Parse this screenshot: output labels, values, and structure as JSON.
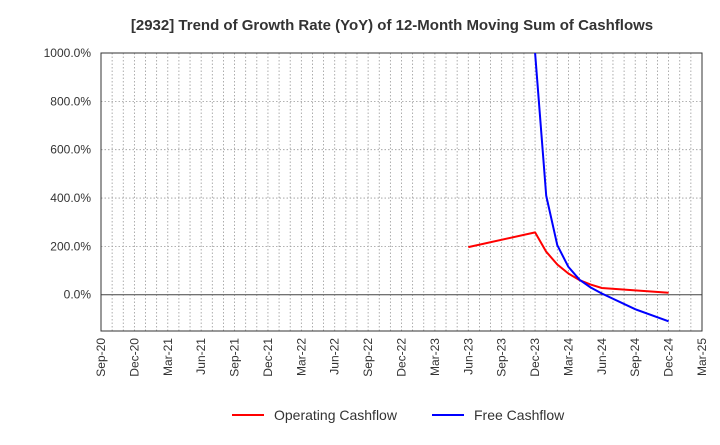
{
  "chart_data": {
    "type": "line",
    "title": "[2932]  Trend of Growth Rate (YoY) of 12-Month Moving Sum of Cashflows",
    "xlabel": "",
    "ylabel": "",
    "x_ticks": [
      "Sep-20",
      "Dec-20",
      "Mar-21",
      "Jun-21",
      "Sep-21",
      "Dec-21",
      "Mar-22",
      "Jun-22",
      "Sep-22",
      "Dec-22",
      "Mar-23",
      "Jun-23",
      "Sep-23",
      "Dec-23",
      "Mar-24",
      "Jun-24",
      "Sep-24",
      "Dec-24",
      "Mar-25"
    ],
    "y_ticks": [
      0,
      200,
      400,
      600,
      800,
      1000
    ],
    "y_tick_labels": [
      "0.0%",
      "200.0%",
      "400.0%",
      "600.0%",
      "800.0%",
      "1000.0%"
    ],
    "ylim": [
      -150,
      1000
    ],
    "xlim": [
      "2020-09",
      "2025-03"
    ],
    "grid": true,
    "legend_position": "bottom",
    "series": [
      {
        "name": "Operating Cashflow",
        "color": "#ff0000",
        "points": [
          {
            "x": "2023-06",
            "y": 197
          },
          {
            "x": "2023-12",
            "y": 258
          },
          {
            "x": "2024-01",
            "y": 178
          },
          {
            "x": "2024-02",
            "y": 125
          },
          {
            "x": "2024-03",
            "y": 88
          },
          {
            "x": "2024-04",
            "y": 60
          },
          {
            "x": "2024-05",
            "y": 42
          },
          {
            "x": "2024-06",
            "y": 28
          },
          {
            "x": "2024-09",
            "y": 18
          },
          {
            "x": "2024-12",
            "y": 8
          }
        ]
      },
      {
        "name": "Free Cashflow",
        "color": "#0000ff",
        "points": [
          {
            "x": "2023-12",
            "y": 1000
          },
          {
            "x": "2024-01",
            "y": 410
          },
          {
            "x": "2024-02",
            "y": 205
          },
          {
            "x": "2024-03",
            "y": 115
          },
          {
            "x": "2024-04",
            "y": 62
          },
          {
            "x": "2024-05",
            "y": 30
          },
          {
            "x": "2024-06",
            "y": 5
          },
          {
            "x": "2024-09",
            "y": -60
          },
          {
            "x": "2024-12",
            "y": -110
          }
        ]
      }
    ]
  }
}
